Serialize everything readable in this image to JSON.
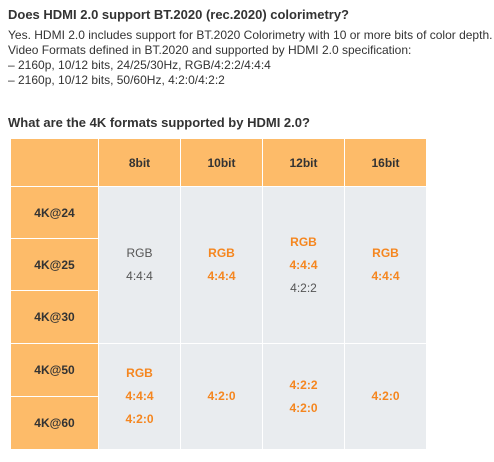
{
  "questions": {
    "q1": "Does HDMI 2.0 support BT.2020 (rec.2020) colorimetry?",
    "q2": "What are the 4K formats supported by HDMI 2.0?"
  },
  "answer": {
    "lines": [
      "Yes. HDMI 2.0 includes support for BT.2020 Colorimetry with 10 or more bits of color depth.",
      "Video Formats defined in BT.2020 and supported by HDMI 2.0 specification:",
      "– 2160p, 10/12 bits, 24/25/30Hz, RGB/4:2:2/4:4:4",
      "– 2160p, 10/12 bits, 50/60Hz, 4:2:0/4:2:2"
    ]
  },
  "table": {
    "columns": [
      "8bit",
      "10bit",
      "12bit",
      "16bit"
    ],
    "rows": [
      "4K@24",
      "4K@25",
      "4K@30",
      "4K@50",
      "4K@60"
    ],
    "group1": {
      "c8": [
        "RGB",
        "4:4:4"
      ],
      "c10": [
        "RGB",
        "4:4:4"
      ],
      "c12": [
        "RGB",
        "4:4:4",
        "4:2:2"
      ],
      "c16": [
        "RGB",
        "4:4:4"
      ]
    },
    "group2": {
      "c8": [
        "RGB",
        "4:4:4",
        "4:2:0"
      ],
      "c10": [
        "4:2:0"
      ],
      "c12": [
        "4:2:2",
        "4:2:0"
      ],
      "c16": [
        "4:2:0"
      ]
    }
  },
  "colors": {
    "header_bg": "#fdbb69",
    "cell_bg": "#e9ecef",
    "highlight_text": "#f5861f",
    "normal_text": "#555555"
  }
}
